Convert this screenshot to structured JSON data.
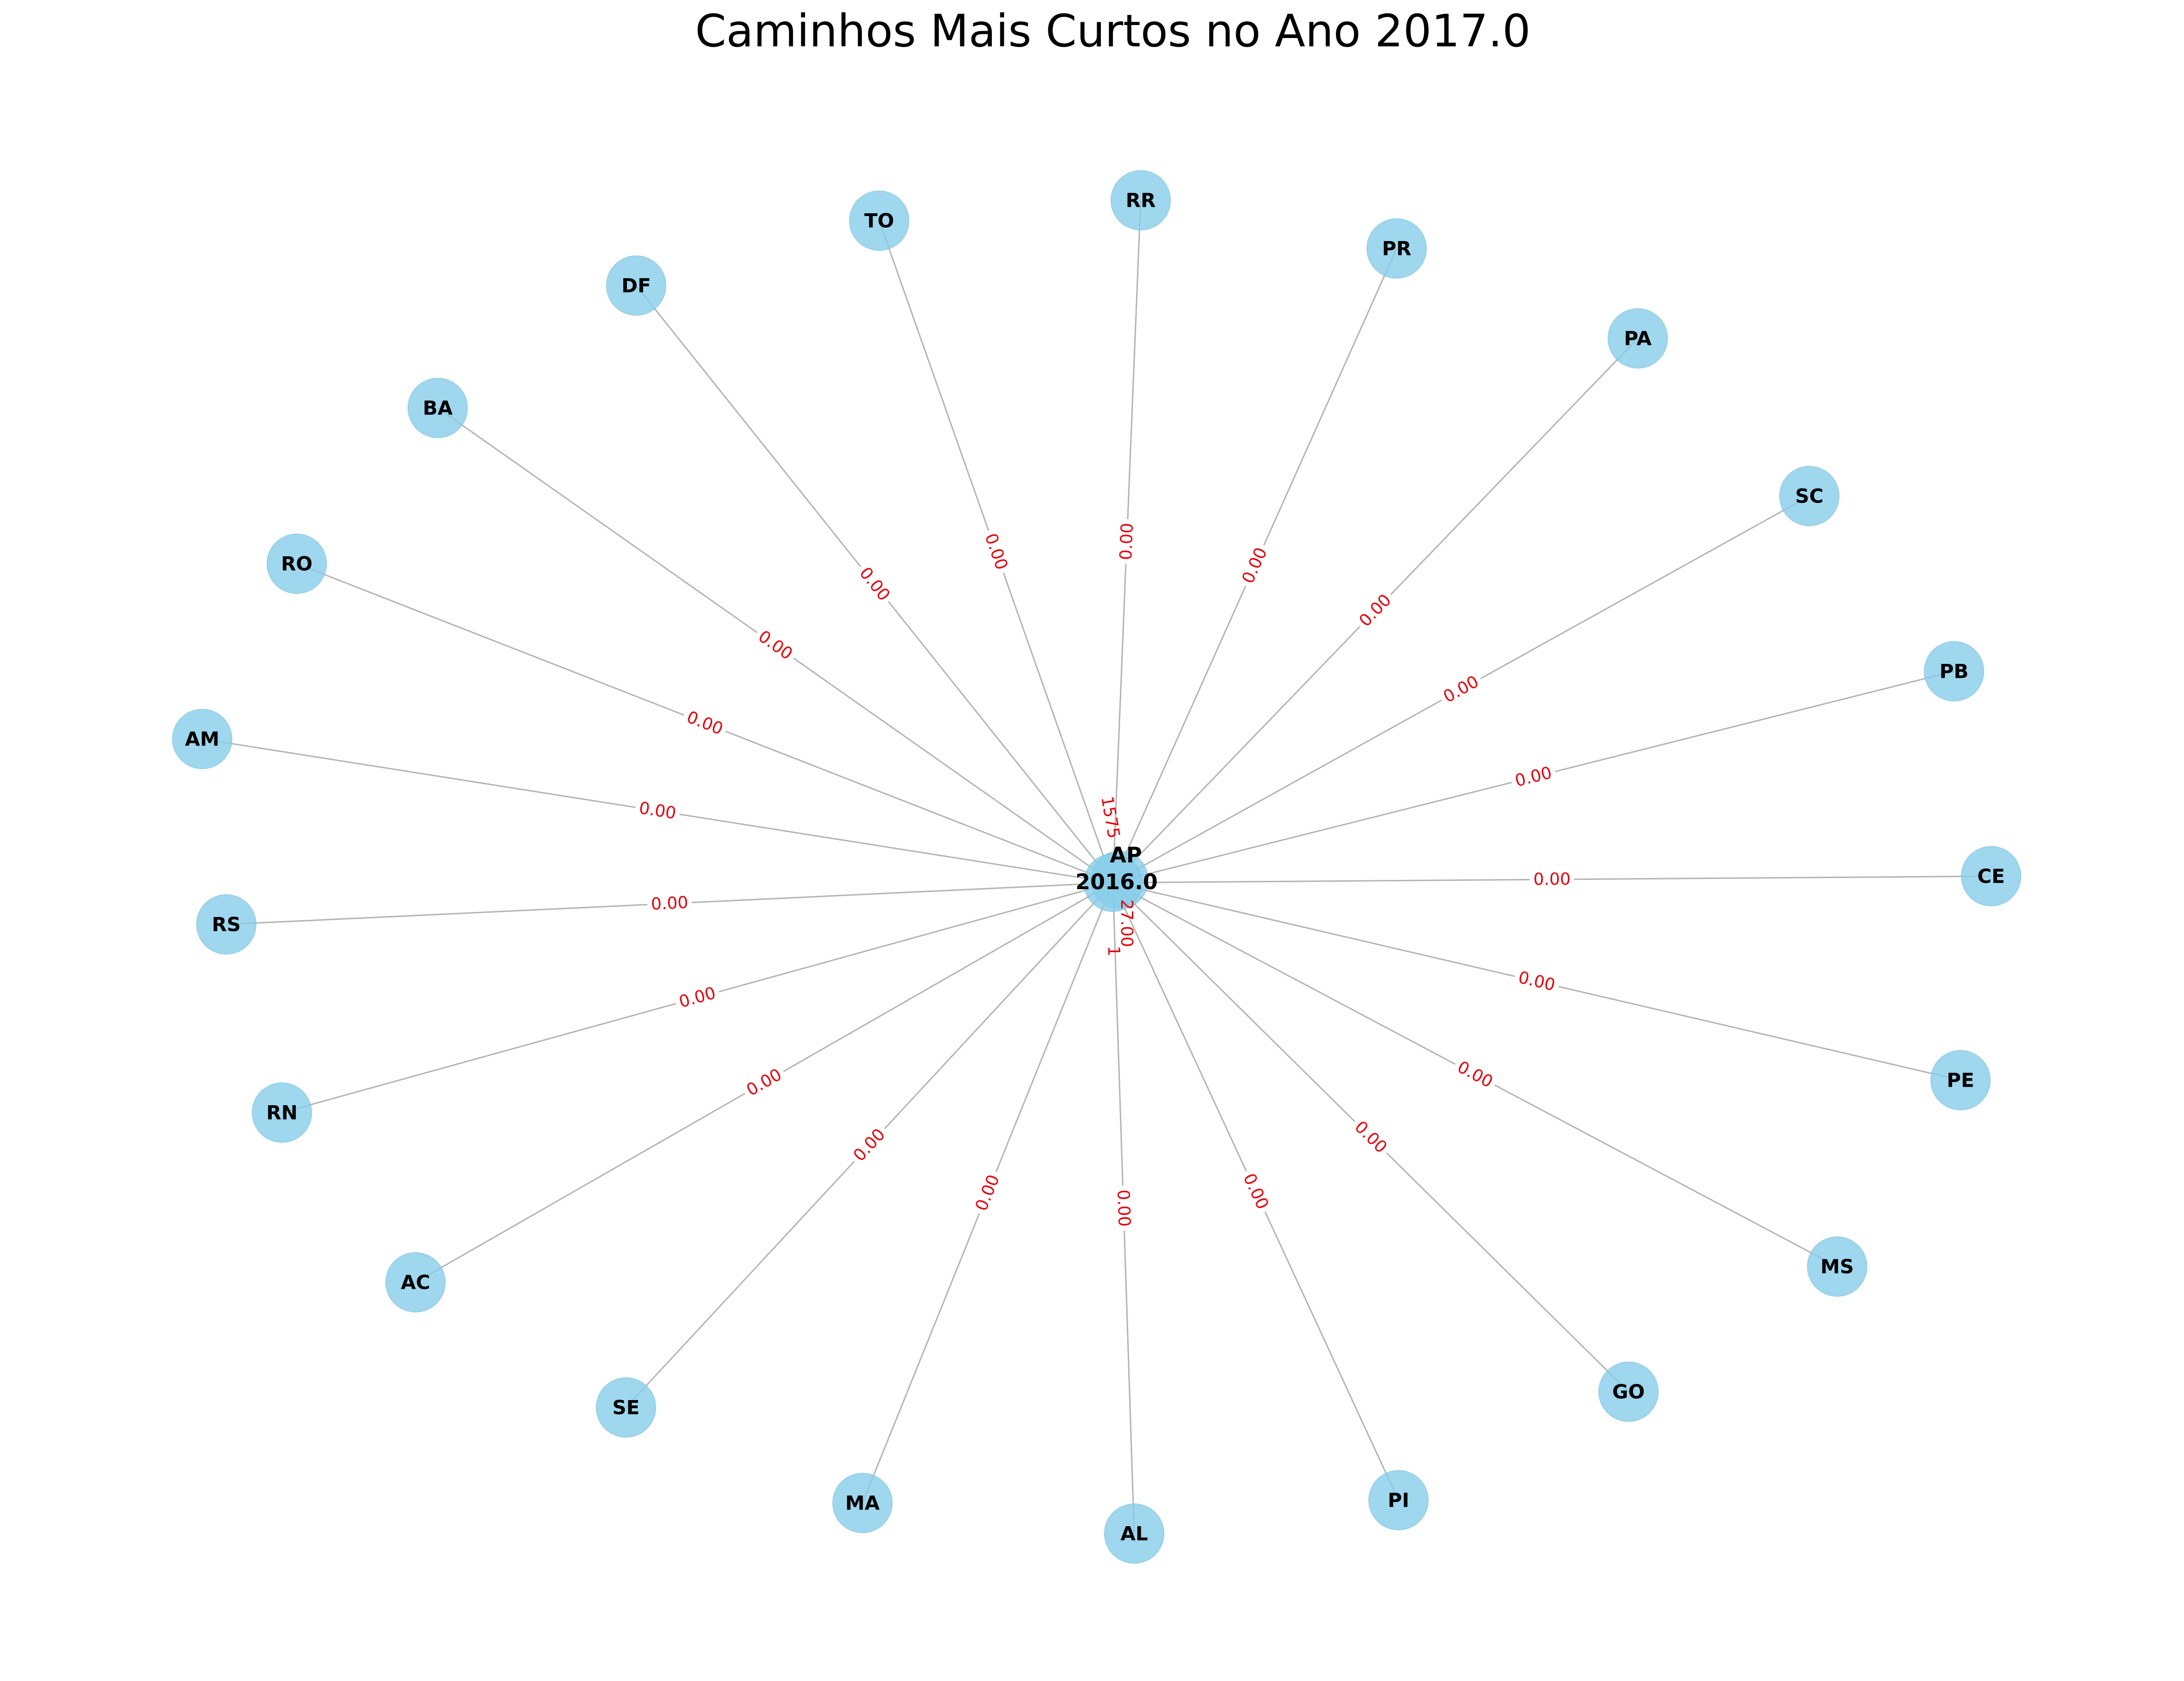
{
  "title": "Caminhos Mais Curtos no Ano 2017.0",
  "colors": {
    "node": "#87ceeb",
    "edge": "#b3b3b3",
    "edge_label": "#e8000b",
    "text": "#000000"
  },
  "center": {
    "node": "AP",
    "label": "2016.0",
    "overlap_label_1": "1575",
    "overlap_label_2": "27.00",
    "overlap_label_3": "1"
  },
  "nodes": [
    "TO",
    "RR",
    "PR",
    "PA",
    "SC",
    "PB",
    "CE",
    "PE",
    "MS",
    "GO",
    "PI",
    "AL",
    "MA",
    "SE",
    "AC",
    "RN",
    "RS",
    "AM",
    "RO",
    "BA",
    "DF"
  ],
  "edges": [
    {
      "from": "AP",
      "to": "TO",
      "weight": "0.00"
    },
    {
      "from": "AP",
      "to": "RR",
      "weight": "0.00"
    },
    {
      "from": "AP",
      "to": "PR",
      "weight": "0.00"
    },
    {
      "from": "AP",
      "to": "PA",
      "weight": "0.00"
    },
    {
      "from": "AP",
      "to": "SC",
      "weight": "0.00"
    },
    {
      "from": "AP",
      "to": "PB",
      "weight": "0.00"
    },
    {
      "from": "AP",
      "to": "CE",
      "weight": "0.00"
    },
    {
      "from": "AP",
      "to": "PE",
      "weight": "0.00"
    },
    {
      "from": "AP",
      "to": "MS",
      "weight": "0.00"
    },
    {
      "from": "AP",
      "to": "GO",
      "weight": "0.00"
    },
    {
      "from": "AP",
      "to": "PI",
      "weight": "0.00"
    },
    {
      "from": "AP",
      "to": "AL",
      "weight": "0.00"
    },
    {
      "from": "AP",
      "to": "MA",
      "weight": "0.00"
    },
    {
      "from": "AP",
      "to": "SE",
      "weight": "0.00"
    },
    {
      "from": "AP",
      "to": "AC",
      "weight": "0.00"
    },
    {
      "from": "AP",
      "to": "RN",
      "weight": "0.00"
    },
    {
      "from": "AP",
      "to": "RS",
      "weight": "0.00"
    },
    {
      "from": "AP",
      "to": "AM",
      "weight": "0.00"
    },
    {
      "from": "AP",
      "to": "RO",
      "weight": "0.00"
    },
    {
      "from": "AP",
      "to": "BA",
      "weight": "0.00"
    },
    {
      "from": "AP",
      "to": "DF",
      "weight": "0.00"
    }
  ]
}
